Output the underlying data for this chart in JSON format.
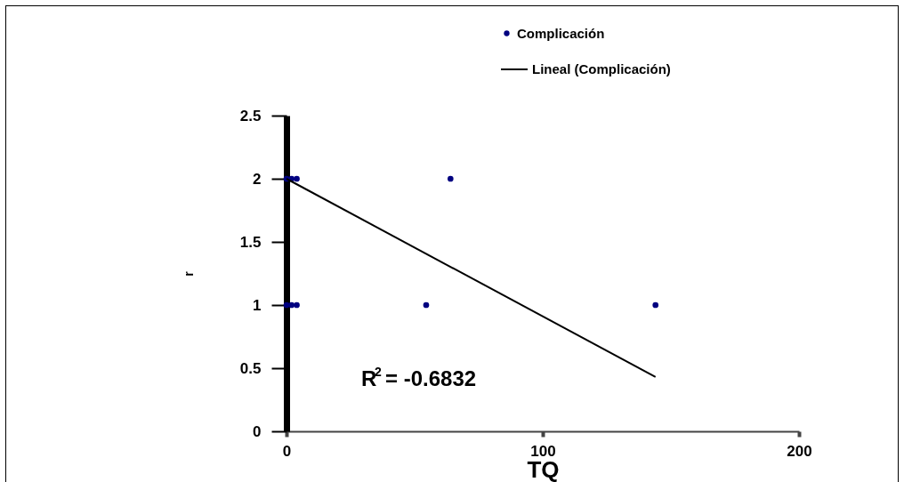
{
  "chart_data": {
    "type": "scatter",
    "xlabel": "TQ",
    "ylabel": "r",
    "series": [
      {
        "name": "Complicación",
        "marker": "circle",
        "color": "#000080",
        "x": [
          0,
          2,
          4,
          0,
          2,
          4,
          54.5,
          64,
          144
        ],
        "values": [
          2,
          2,
          2,
          1,
          1,
          1,
          1,
          2,
          1
        ]
      },
      {
        "name": "Lineal (Complicación)",
        "type": "line",
        "color": "#000000",
        "x": [
          0,
          144
        ],
        "values": [
          2,
          0.43
        ]
      }
    ],
    "xlim": [
      0,
      200
    ],
    "xticks": [
      0,
      100,
      200
    ],
    "ylim": [
      0,
      2.5
    ],
    "yticks": [
      0,
      0.5,
      1,
      1.5,
      2,
      2.5
    ],
    "annotations": [
      "R$^{2}$ = -0.6832"
    ],
    "legend": "top",
    "grid": false
  }
}
